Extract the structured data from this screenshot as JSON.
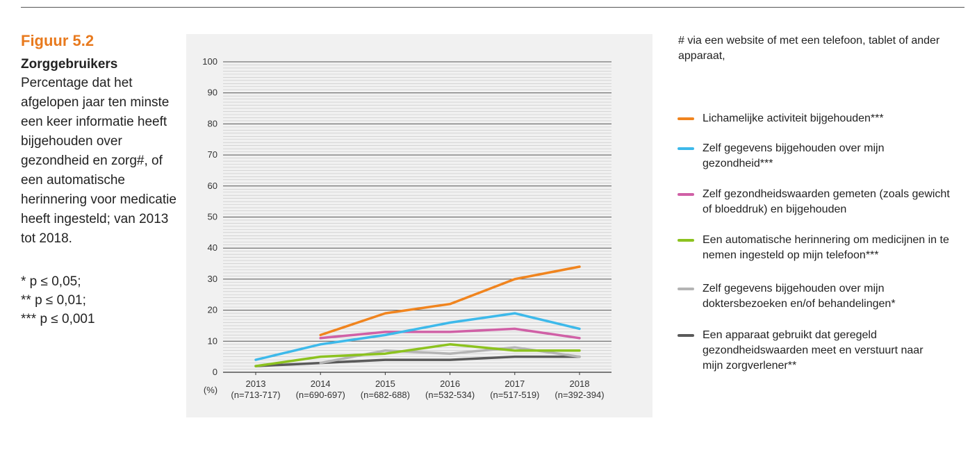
{
  "figure": {
    "label": "Figuur 5.2",
    "title": "Zorggebruikers",
    "description": "Percentage dat het afgelopen jaar ten minste een keer informatie heeft bijgehouden over gezondheid en zorg#, of een automatische herinnering voor medicatie heeft ingesteld; van 2013 tot 2018.",
    "notes": [
      "* p ≤ 0,05;",
      "** p ≤ 0,01;",
      "*** p ≤ 0,001"
    ],
    "footnote": "# via een website of met een telefoon, tablet of ander apparaat,"
  },
  "chart_data": {
    "type": "line",
    "unit_label": "(%)",
    "categories": [
      "2013",
      "2014",
      "2015",
      "2016",
      "2017",
      "2018"
    ],
    "sample_sizes": [
      "(n=713-717)",
      "(n=690-697)",
      "(n=682-688)",
      "(n=532-534)",
      "(n=517-519)",
      "(n=392-394)"
    ],
    "ylim": [
      0,
      100
    ],
    "y_ticks": [
      0,
      10,
      20,
      30,
      40,
      50,
      60,
      70,
      80,
      90,
      100
    ],
    "grid": true,
    "legend_position": "right",
    "series": [
      {
        "name": "Lichamelijke activiteit bijgehouden***",
        "color": "#f0841e",
        "values": [
          null,
          12,
          19,
          22,
          30,
          34
        ]
      },
      {
        "name": "Zelf gegevens bijgehouden over mijn gezondheid***",
        "color": "#3db9ea",
        "values": [
          4,
          9,
          12,
          16,
          19,
          14
        ]
      },
      {
        "name": "Zelf gezondheidswaarden gemeten (zoals gewicht of bloeddruk) en bijgehouden",
        "color": "#d060a6",
        "values": [
          null,
          11,
          13,
          13,
          14,
          11
        ]
      },
      {
        "name": "Een automatische herinnering om medicijnen in te nemen ingesteld op mijn telefoon***",
        "color": "#8cc21f",
        "values": [
          2,
          5,
          6,
          9,
          7,
          7
        ]
      },
      {
        "name": "Zelf gegevens bijgehouden over mijn doktersbezoeken en/of behandelingen*",
        "color": "#b4b4b4",
        "values": [
          null,
          3,
          7,
          6,
          8,
          5
        ]
      },
      {
        "name": "Een apparaat gebruikt dat geregeld gezondheidswaarden meet en verstuurt naar mijn zorgverlener**",
        "color": "#5a5a5a",
        "values": [
          2,
          3,
          4,
          4,
          5,
          5
        ]
      }
    ]
  }
}
